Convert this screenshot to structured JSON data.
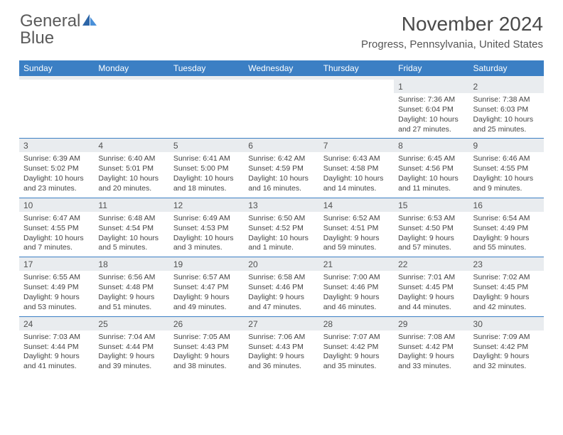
{
  "logo": {
    "general": "General",
    "blue": "Blue"
  },
  "title": "November 2024",
  "location": "Progress, Pennsylvania, United States",
  "headers": [
    "Sunday",
    "Monday",
    "Tuesday",
    "Wednesday",
    "Thursday",
    "Friday",
    "Saturday"
  ],
  "colors": {
    "header_bg": "#3b7fc4",
    "daynum_bg": "#e9ecef",
    "accent": "#4a90d9"
  },
  "weeks": [
    [
      {
        "empty": true
      },
      {
        "empty": true
      },
      {
        "empty": true
      },
      {
        "empty": true
      },
      {
        "empty": true
      },
      {
        "num": "1",
        "sunrise": "Sunrise: 7:36 AM",
        "sunset": "Sunset: 6:04 PM",
        "daylight1": "Daylight: 10 hours",
        "daylight2": "and 27 minutes."
      },
      {
        "num": "2",
        "sunrise": "Sunrise: 7:38 AM",
        "sunset": "Sunset: 6:03 PM",
        "daylight1": "Daylight: 10 hours",
        "daylight2": "and 25 minutes."
      }
    ],
    [
      {
        "num": "3",
        "sunrise": "Sunrise: 6:39 AM",
        "sunset": "Sunset: 5:02 PM",
        "daylight1": "Daylight: 10 hours",
        "daylight2": "and 23 minutes."
      },
      {
        "num": "4",
        "sunrise": "Sunrise: 6:40 AM",
        "sunset": "Sunset: 5:01 PM",
        "daylight1": "Daylight: 10 hours",
        "daylight2": "and 20 minutes."
      },
      {
        "num": "5",
        "sunrise": "Sunrise: 6:41 AM",
        "sunset": "Sunset: 5:00 PM",
        "daylight1": "Daylight: 10 hours",
        "daylight2": "and 18 minutes."
      },
      {
        "num": "6",
        "sunrise": "Sunrise: 6:42 AM",
        "sunset": "Sunset: 4:59 PM",
        "daylight1": "Daylight: 10 hours",
        "daylight2": "and 16 minutes."
      },
      {
        "num": "7",
        "sunrise": "Sunrise: 6:43 AM",
        "sunset": "Sunset: 4:58 PM",
        "daylight1": "Daylight: 10 hours",
        "daylight2": "and 14 minutes."
      },
      {
        "num": "8",
        "sunrise": "Sunrise: 6:45 AM",
        "sunset": "Sunset: 4:56 PM",
        "daylight1": "Daylight: 10 hours",
        "daylight2": "and 11 minutes."
      },
      {
        "num": "9",
        "sunrise": "Sunrise: 6:46 AM",
        "sunset": "Sunset: 4:55 PM",
        "daylight1": "Daylight: 10 hours",
        "daylight2": "and 9 minutes."
      }
    ],
    [
      {
        "num": "10",
        "sunrise": "Sunrise: 6:47 AM",
        "sunset": "Sunset: 4:55 PM",
        "daylight1": "Daylight: 10 hours",
        "daylight2": "and 7 minutes."
      },
      {
        "num": "11",
        "sunrise": "Sunrise: 6:48 AM",
        "sunset": "Sunset: 4:54 PM",
        "daylight1": "Daylight: 10 hours",
        "daylight2": "and 5 minutes."
      },
      {
        "num": "12",
        "sunrise": "Sunrise: 6:49 AM",
        "sunset": "Sunset: 4:53 PM",
        "daylight1": "Daylight: 10 hours",
        "daylight2": "and 3 minutes."
      },
      {
        "num": "13",
        "sunrise": "Sunrise: 6:50 AM",
        "sunset": "Sunset: 4:52 PM",
        "daylight1": "Daylight: 10 hours",
        "daylight2": "and 1 minute."
      },
      {
        "num": "14",
        "sunrise": "Sunrise: 6:52 AM",
        "sunset": "Sunset: 4:51 PM",
        "daylight1": "Daylight: 9 hours",
        "daylight2": "and 59 minutes."
      },
      {
        "num": "15",
        "sunrise": "Sunrise: 6:53 AM",
        "sunset": "Sunset: 4:50 PM",
        "daylight1": "Daylight: 9 hours",
        "daylight2": "and 57 minutes."
      },
      {
        "num": "16",
        "sunrise": "Sunrise: 6:54 AM",
        "sunset": "Sunset: 4:49 PM",
        "daylight1": "Daylight: 9 hours",
        "daylight2": "and 55 minutes."
      }
    ],
    [
      {
        "num": "17",
        "sunrise": "Sunrise: 6:55 AM",
        "sunset": "Sunset: 4:49 PM",
        "daylight1": "Daylight: 9 hours",
        "daylight2": "and 53 minutes."
      },
      {
        "num": "18",
        "sunrise": "Sunrise: 6:56 AM",
        "sunset": "Sunset: 4:48 PM",
        "daylight1": "Daylight: 9 hours",
        "daylight2": "and 51 minutes."
      },
      {
        "num": "19",
        "sunrise": "Sunrise: 6:57 AM",
        "sunset": "Sunset: 4:47 PM",
        "daylight1": "Daylight: 9 hours",
        "daylight2": "and 49 minutes."
      },
      {
        "num": "20",
        "sunrise": "Sunrise: 6:58 AM",
        "sunset": "Sunset: 4:46 PM",
        "daylight1": "Daylight: 9 hours",
        "daylight2": "and 47 minutes."
      },
      {
        "num": "21",
        "sunrise": "Sunrise: 7:00 AM",
        "sunset": "Sunset: 4:46 PM",
        "daylight1": "Daylight: 9 hours",
        "daylight2": "and 46 minutes."
      },
      {
        "num": "22",
        "sunrise": "Sunrise: 7:01 AM",
        "sunset": "Sunset: 4:45 PM",
        "daylight1": "Daylight: 9 hours",
        "daylight2": "and 44 minutes."
      },
      {
        "num": "23",
        "sunrise": "Sunrise: 7:02 AM",
        "sunset": "Sunset: 4:45 PM",
        "daylight1": "Daylight: 9 hours",
        "daylight2": "and 42 minutes."
      }
    ],
    [
      {
        "num": "24",
        "sunrise": "Sunrise: 7:03 AM",
        "sunset": "Sunset: 4:44 PM",
        "daylight1": "Daylight: 9 hours",
        "daylight2": "and 41 minutes."
      },
      {
        "num": "25",
        "sunrise": "Sunrise: 7:04 AM",
        "sunset": "Sunset: 4:44 PM",
        "daylight1": "Daylight: 9 hours",
        "daylight2": "and 39 minutes."
      },
      {
        "num": "26",
        "sunrise": "Sunrise: 7:05 AM",
        "sunset": "Sunset: 4:43 PM",
        "daylight1": "Daylight: 9 hours",
        "daylight2": "and 38 minutes."
      },
      {
        "num": "27",
        "sunrise": "Sunrise: 7:06 AM",
        "sunset": "Sunset: 4:43 PM",
        "daylight1": "Daylight: 9 hours",
        "daylight2": "and 36 minutes."
      },
      {
        "num": "28",
        "sunrise": "Sunrise: 7:07 AM",
        "sunset": "Sunset: 4:42 PM",
        "daylight1": "Daylight: 9 hours",
        "daylight2": "and 35 minutes."
      },
      {
        "num": "29",
        "sunrise": "Sunrise: 7:08 AM",
        "sunset": "Sunset: 4:42 PM",
        "daylight1": "Daylight: 9 hours",
        "daylight2": "and 33 minutes."
      },
      {
        "num": "30",
        "sunrise": "Sunrise: 7:09 AM",
        "sunset": "Sunset: 4:42 PM",
        "daylight1": "Daylight: 9 hours",
        "daylight2": "and 32 minutes."
      }
    ]
  ]
}
